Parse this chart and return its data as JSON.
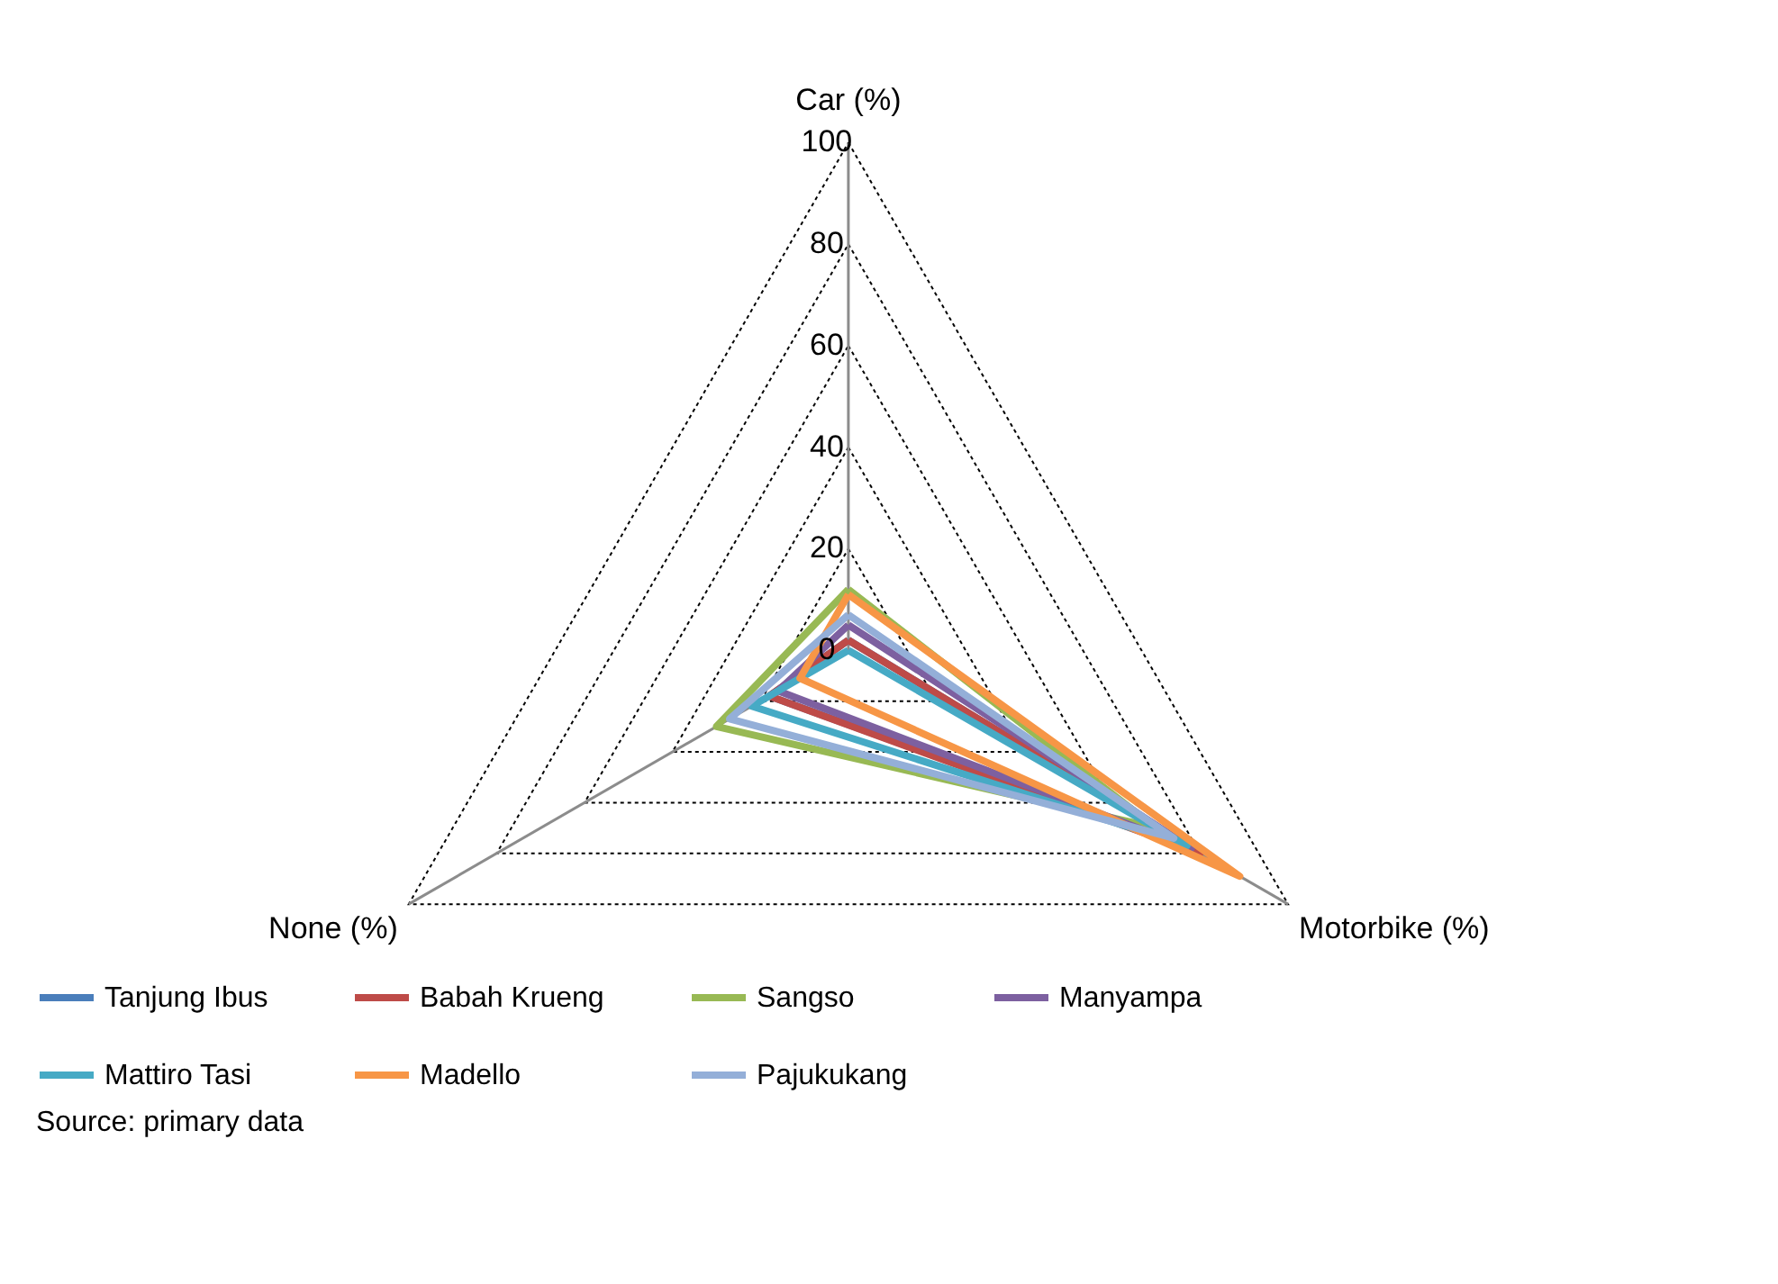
{
  "chart_data": {
    "type": "radar",
    "categories": [
      "Car (%)",
      "Motorbike (%)",
      "None (%)"
    ],
    "series": [
      {
        "name": "Tanjung Ibus",
        "color": "#4a7ebb",
        "values": [
          2,
          78,
          18
        ]
      },
      {
        "name": "Babah Krueng",
        "color": "#be4b48",
        "values": [
          2,
          80,
          18
        ]
      },
      {
        "name": "Sangso",
        "color": "#98b954",
        "values": [
          12,
          70,
          30
        ]
      },
      {
        "name": "Manyampa",
        "color": "#7d60a0",
        "values": [
          5,
          78,
          16
        ]
      },
      {
        "name": "Mattiro Tasi",
        "color": "#46aac5",
        "values": [
          0,
          77,
          22
        ]
      },
      {
        "name": "Madello",
        "color": "#f79646",
        "values": [
          11,
          89,
          11
        ]
      },
      {
        "name": "Pajukukang",
        "color": "#94afd8",
        "values": [
          7,
          74,
          27
        ]
      }
    ],
    "ylim": [
      0,
      100
    ],
    "yticks": [
      0,
      20,
      40,
      60,
      80,
      100
    ],
    "grid": true,
    "legend": "bottom",
    "annotations": [
      "Source: primary data"
    ]
  }
}
